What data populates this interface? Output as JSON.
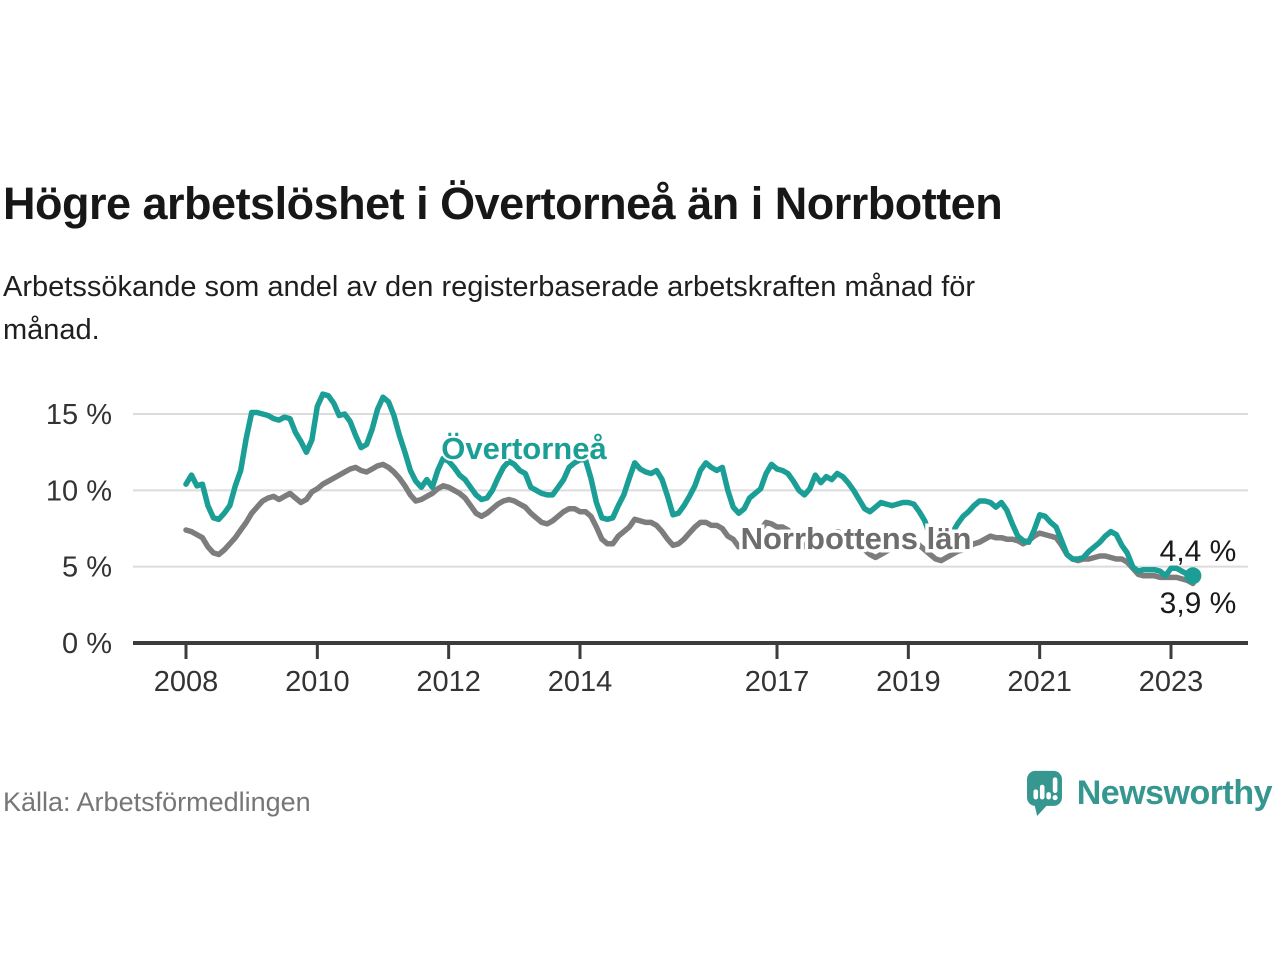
{
  "chart_data": {
    "type": "line",
    "title": "Högre arbetslöshet i Övertorneå än i Norrbotten",
    "subtitle_line1": "Arbetssökande som andel av den registerbaserade arbetskraften månad för",
    "subtitle_line2": "månad.",
    "source": "Källa: Arbetsförmedlingen",
    "unit": "%",
    "x_start": "2008-01",
    "x_end": "2023-05",
    "points_per_year": 12,
    "ylim": [
      0,
      16.5
    ],
    "grid": "horizontal-only",
    "y_axis": {
      "ticks": [
        {
          "value": 0,
          "label": "0 %"
        },
        {
          "value": 5,
          "label": "5 %"
        },
        {
          "value": 10,
          "label": "10 %"
        },
        {
          "value": 15,
          "label": "15 %"
        }
      ]
    },
    "x_axis": {
      "ticks": [
        {
          "year": 2008,
          "label": "2008"
        },
        {
          "year": 2010,
          "label": "2010"
        },
        {
          "year": 2012,
          "label": "2012"
        },
        {
          "year": 2014,
          "label": "2014"
        },
        {
          "year": 2017,
          "label": "2017"
        },
        {
          "year": 2019,
          "label": "2019"
        },
        {
          "year": 2021,
          "label": "2021"
        },
        {
          "year": 2023,
          "label": "2023"
        }
      ]
    },
    "series": [
      {
        "name": "Övertorneå",
        "color": "#1b9e95",
        "end_label": "4,4 %",
        "end_value": 4.4,
        "values": [
          10.4,
          11.0,
          10.3,
          10.4,
          9.0,
          8.2,
          8.1,
          8.5,
          9.0,
          10.3,
          11.3,
          13.4,
          15.1,
          15.1,
          15.0,
          14.9,
          14.7,
          14.6,
          14.8,
          14.7,
          13.8,
          13.2,
          12.5,
          13.3,
          15.5,
          16.3,
          16.2,
          15.7,
          14.9,
          15.0,
          14.5,
          13.6,
          12.8,
          13.0,
          14.0,
          15.3,
          16.1,
          15.8,
          14.9,
          13.6,
          12.5,
          11.3,
          10.6,
          10.2,
          10.7,
          10.2,
          11.3,
          12.1,
          11.9,
          11.5,
          11.0,
          10.7,
          10.2,
          9.7,
          9.4,
          9.5,
          10.0,
          10.8,
          11.5,
          11.9,
          11.7,
          11.3,
          11.1,
          10.2,
          10.0,
          9.8,
          9.7,
          9.7,
          10.2,
          10.7,
          11.5,
          11.8,
          12.0,
          12.0,
          10.8,
          9.2,
          8.2,
          8.1,
          8.2,
          9.0,
          9.7,
          10.8,
          11.8,
          11.4,
          11.2,
          11.1,
          11.3,
          10.7,
          9.6,
          8.4,
          8.5,
          9.0,
          9.6,
          10.3,
          11.3,
          11.8,
          11.5,
          11.3,
          11.5,
          10.0,
          8.9,
          8.5,
          8.8,
          9.5,
          9.8,
          10.1,
          11.1,
          11.7,
          11.4,
          11.3,
          11.1,
          10.6,
          10.0,
          9.7,
          10.1,
          11.0,
          10.5,
          10.9,
          10.7,
          11.1,
          10.9,
          10.5,
          10.0,
          9.4,
          8.8,
          8.6,
          8.9,
          9.2,
          9.1,
          9.0,
          9.1,
          9.2,
          9.2,
          9.1,
          8.6,
          8.0,
          7.0,
          6.4,
          6.2,
          6.6,
          7.2,
          7.8,
          8.3,
          8.6,
          9.0,
          9.3,
          9.3,
          9.2,
          8.9,
          9.2,
          8.7,
          7.8,
          7.0,
          6.7,
          6.6,
          7.4,
          8.4,
          8.3,
          7.9,
          7.6,
          6.7,
          5.8,
          5.5,
          5.5,
          5.6,
          6.0,
          6.3,
          6.6,
          7.0,
          7.3,
          7.1,
          6.4,
          5.9,
          5.0,
          4.7,
          4.8,
          4.8,
          4.8,
          4.7,
          4.4,
          4.9,
          4.9,
          4.7,
          4.5,
          4.4
        ]
      },
      {
        "name": "Norrbottens län",
        "color": "#7d7d7d",
        "end_label": "3,9 %",
        "end_value": 3.9,
        "values": [
          7.4,
          7.3,
          7.1,
          6.9,
          6.3,
          5.9,
          5.8,
          6.1,
          6.5,
          6.9,
          7.4,
          7.9,
          8.5,
          8.9,
          9.3,
          9.5,
          9.6,
          9.4,
          9.6,
          9.8,
          9.5,
          9.2,
          9.4,
          9.9,
          10.1,
          10.4,
          10.6,
          10.8,
          11.0,
          11.2,
          11.4,
          11.5,
          11.3,
          11.2,
          11.4,
          11.6,
          11.7,
          11.5,
          11.2,
          10.8,
          10.3,
          9.7,
          9.3,
          9.4,
          9.6,
          9.8,
          10.1,
          10.3,
          10.2,
          10.0,
          9.8,
          9.5,
          9.0,
          8.5,
          8.3,
          8.5,
          8.8,
          9.1,
          9.3,
          9.4,
          9.3,
          9.1,
          8.9,
          8.5,
          8.2,
          7.9,
          7.8,
          8.0,
          8.3,
          8.6,
          8.8,
          8.8,
          8.6,
          8.6,
          8.3,
          7.6,
          6.8,
          6.5,
          6.5,
          7.0,
          7.3,
          7.6,
          8.1,
          8.0,
          7.9,
          7.9,
          7.7,
          7.3,
          6.8,
          6.4,
          6.5,
          6.8,
          7.2,
          7.6,
          7.9,
          7.9,
          7.7,
          7.7,
          7.5,
          7.0,
          6.8,
          6.3,
          6.4,
          6.8,
          7.0,
          7.4,
          7.9,
          7.8,
          7.6,
          7.6,
          7.4,
          7.0,
          6.8,
          6.3,
          6.3,
          6.5,
          6.8,
          7.0,
          7.2,
          7.3,
          7.2,
          7.1,
          6.9,
          6.5,
          6.1,
          5.8,
          5.6,
          5.8,
          6.0,
          6.2,
          6.4,
          6.6,
          6.7,
          6.6,
          6.4,
          6.1,
          5.8,
          5.5,
          5.4,
          5.6,
          5.8,
          6.0,
          6.1,
          6.3,
          6.5,
          6.6,
          6.8,
          7.0,
          6.9,
          6.9,
          6.8,
          6.8,
          6.7,
          6.5,
          6.7,
          7.0,
          7.2,
          7.1,
          7.0,
          6.9,
          6.4,
          5.8,
          5.5,
          5.4,
          5.5,
          5.5,
          5.6,
          5.7,
          5.7,
          5.6,
          5.5,
          5.5,
          5.3,
          4.9,
          4.5,
          4.4,
          4.4,
          4.4,
          4.3,
          4.3,
          4.3,
          4.3,
          4.2,
          4.1,
          3.9
        ]
      }
    ],
    "style": {
      "grid_color": "#dcdcdc",
      "axis_color": "#3c3c3c",
      "tick_text_color": "#333333",
      "line_width": 5.5
    }
  },
  "brand": {
    "name": "Newsworthy",
    "color": "#35978f"
  }
}
